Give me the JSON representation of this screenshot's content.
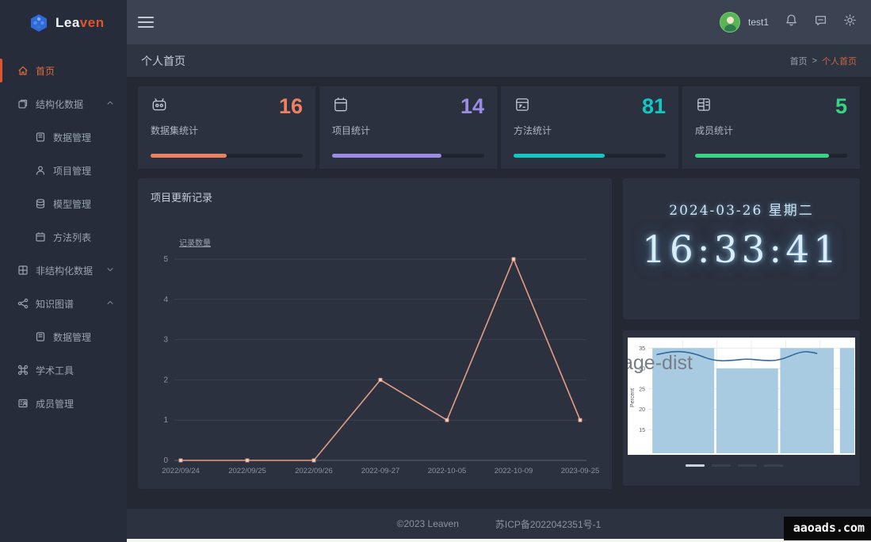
{
  "brand": {
    "primary": "Lea",
    "accent": "ven"
  },
  "topbar": {
    "username": "test1"
  },
  "page": {
    "title": "个人首页",
    "breadcrumb_home": "首页",
    "breadcrumb_sep": ">",
    "breadcrumb_current": "个人首页"
  },
  "sidebar": {
    "items": [
      {
        "label": "首页",
        "icon": "home-icon",
        "active": true
      },
      {
        "label": "结构化数据",
        "icon": "copy-icon",
        "arrow": "up"
      },
      {
        "label": "数据管理",
        "icon": "notebook-icon"
      },
      {
        "label": "项目管理",
        "icon": "user-icon"
      },
      {
        "label": "模型管理",
        "icon": "model-icon"
      },
      {
        "label": "方法列表",
        "icon": "calendar-icon"
      },
      {
        "label": "非结构化数据",
        "icon": "grid-doc-icon",
        "arrow": "down"
      },
      {
        "label": "知识图谱",
        "icon": "share-icon",
        "arrow": "up"
      },
      {
        "label": "数据管理",
        "icon": "notebook-icon"
      },
      {
        "label": "学术工具",
        "icon": "command-icon"
      },
      {
        "label": "成员管理",
        "icon": "member-icon"
      }
    ]
  },
  "stats": [
    {
      "label": "数据集统计",
      "value": "16",
      "color": "#ee8060",
      "percent": 50
    },
    {
      "label": "项目统计",
      "value": "14",
      "color": "#9c8ce4",
      "percent": 72
    },
    {
      "label": "方法统计",
      "value": "81",
      "color": "#10c7c3",
      "percent": 60
    },
    {
      "label": "成员统计",
      "value": "5",
      "color": "#36d584",
      "percent": 88
    }
  ],
  "panels": {
    "chart_title": "项目更新记录",
    "clock": {
      "date": "2024-03-26 星期二",
      "time": "16:33:41"
    }
  },
  "footer": {
    "copyright": "©2023 Leaven",
    "icp": "苏ICP备2022042351号-1"
  },
  "watermark": "aaoads.com",
  "chart_data": [
    {
      "type": "line",
      "title": "项目更新记录",
      "legend": [
        "记录数量"
      ],
      "x": [
        "2022/09/24",
        "2022/09/25",
        "2022/09/26",
        "2022-09-27",
        "2022-10-05",
        "2022-10-09",
        "2023-09-25"
      ],
      "series": [
        {
          "name": "记录数量",
          "values": [
            0,
            0,
            0,
            2,
            1,
            5,
            1
          ]
        }
      ],
      "ylim": [
        0,
        5
      ],
      "yticks": [
        0,
        1,
        2,
        3,
        4,
        5
      ],
      "grid": true,
      "legend_position": "top-left",
      "line_color": "#e39d85",
      "marker_color": "#f2d3c6"
    },
    {
      "type": "bar",
      "title": "age-dist",
      "ylabel": "Percent",
      "ylim": [
        10,
        37
      ],
      "yticks": [
        15,
        20,
        25,
        30,
        35
      ],
      "bars": [
        {
          "x0": 0.02,
          "x1": 0.32,
          "height": 35
        },
        {
          "x0": 0.33,
          "x1": 0.63,
          "height": 30
        },
        {
          "x0": 0.64,
          "x1": 0.9,
          "height": 35
        },
        {
          "x0": 0.93,
          "x1": 1.0,
          "height": 35
        }
      ],
      "overlay_curve": [
        [
          0.04,
          33.4
        ],
        [
          0.13,
          34.3
        ],
        [
          0.22,
          33.8
        ],
        [
          0.32,
          31.8
        ],
        [
          0.42,
          32.0
        ],
        [
          0.48,
          32.4
        ],
        [
          0.56,
          31.9
        ],
        [
          0.64,
          32.0
        ],
        [
          0.74,
          34.2
        ],
        [
          0.8,
          34.0
        ],
        [
          0.84,
          33.3
        ]
      ],
      "bar_color": "#a9cbe2",
      "line_color": "#2f6a9e",
      "grid": true
    }
  ]
}
